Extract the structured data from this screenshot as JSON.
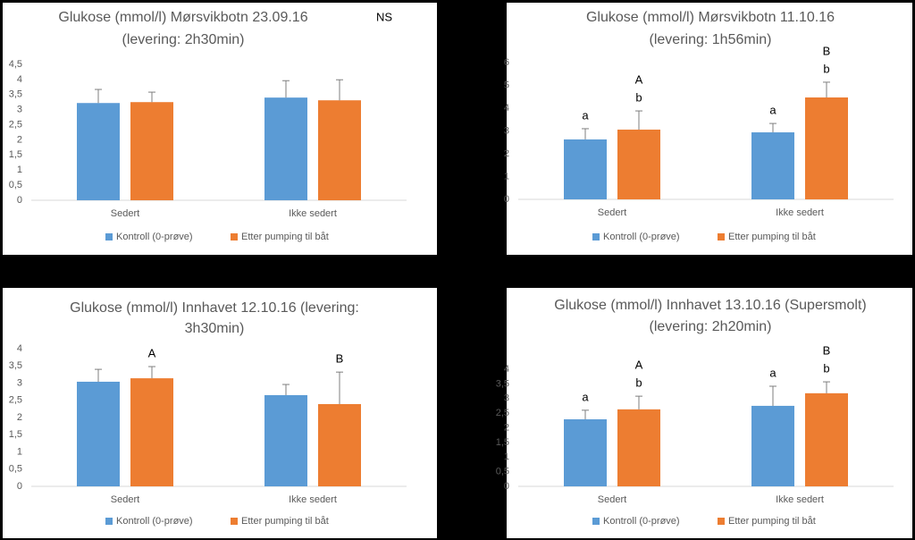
{
  "chart_data": [
    {
      "type": "bar",
      "title": [
        "Glukose (mmol/l) Mørsvikbotn 23.09.16",
        "(levering: 2h30min)"
      ],
      "annotation": "NS",
      "categories": [
        "Sedert",
        "Ikke sedert"
      ],
      "series": [
        {
          "name": "Kontroll (0-prøve)",
          "color": "#5b9bd5",
          "values": [
            3.22,
            3.4
          ],
          "errors": [
            0.45,
            0.56
          ]
        },
        {
          "name": "Etter pumping til båt",
          "color": "#ed7d31",
          "values": [
            3.25,
            3.31
          ],
          "errors": [
            0.33,
            0.68
          ]
        }
      ],
      "ylim": [
        0,
        4.5
      ],
      "yticks": [
        0,
        {
          "value": 0.5,
          "label": "0,5"
        },
        1,
        {
          "value": 1.5,
          "label": "1,5"
        },
        2,
        {
          "value": 2.5,
          "label": "2,5"
        },
        3,
        {
          "value": 3.5,
          "label": "3,5"
        },
        4,
        {
          "value": 4.5,
          "label": "4,5"
        }
      ]
    },
    {
      "type": "bar",
      "title": [
        "Glukose (mmol/l) Mørsvikbotn 11.10.16",
        "(levering: 1h56min)"
      ],
      "categories": [
        "Sedert",
        "Ikke sedert"
      ],
      "series": [
        {
          "name": "Kontroll (0-prøve)",
          "color": "#5b9bd5",
          "values": [
            2.63,
            2.94
          ],
          "errors": [
            0.47,
            0.39
          ],
          "annotations": [
            [
              "a"
            ],
            [
              "a"
            ]
          ]
        },
        {
          "name": "Etter pumping til båt",
          "color": "#ed7d31",
          "values": [
            3.06,
            4.47
          ],
          "errors": [
            0.82,
            0.67
          ],
          "annotations": [
            [
              "A",
              "b"
            ],
            [
              "B",
              "b"
            ]
          ]
        }
      ],
      "ylim": [
        0,
        6
      ],
      "yticks": [
        0,
        1,
        2,
        3,
        4,
        5,
        6
      ]
    },
    {
      "type": "bar",
      "title": [
        "Glukose (mmol/l) Innhavet 12.10.16 (levering:",
        "3h30min)"
      ],
      "categories": [
        "Sedert",
        "Ikke sedert"
      ],
      "series": [
        {
          "name": "Kontroll (0-prøve)",
          "color": "#5b9bd5",
          "values": [
            3.04,
            2.65
          ],
          "errors": [
            0.36,
            0.31
          ]
        },
        {
          "name": "Etter pumping til båt",
          "color": "#ed7d31",
          "values": [
            3.14,
            2.39
          ],
          "errors": [
            0.34,
            0.93
          ],
          "annotations": [
            [
              "A"
            ],
            [
              "B"
            ]
          ]
        }
      ],
      "ylim": [
        0,
        4
      ],
      "yticks": [
        0,
        {
          "value": 0.5,
          "label": "0,5"
        },
        1,
        {
          "value": 1.5,
          "label": "1,5"
        },
        2,
        {
          "value": 2.5,
          "label": "2,5"
        },
        3,
        {
          "value": 3.5,
          "label": "3,5"
        },
        4
      ]
    },
    {
      "type": "bar",
      "title": [
        "Glukose (mmol/l) Innhavet 13.10.16 (Supersmolt)",
        "(levering: 2h20min)"
      ],
      "categories": [
        "Sedert",
        "Ikke sedert"
      ],
      "series": [
        {
          "name": "Kontroll (0-prøve)",
          "color": "#5b9bd5",
          "values": [
            2.29,
            2.75
          ],
          "errors": [
            0.31,
            0.67
          ],
          "annotations": [
            [
              "a"
            ],
            [
              "a"
            ]
          ]
        },
        {
          "name": "Etter pumping til båt",
          "color": "#ed7d31",
          "values": [
            2.63,
            3.18
          ],
          "errors": [
            0.45,
            0.39
          ],
          "annotations": [
            [
              "A",
              "b"
            ],
            [
              "B",
              "b"
            ]
          ]
        }
      ],
      "ylim": [
        0,
        4
      ],
      "yticks": [
        0,
        {
          "value": 0.5,
          "label": "0,5"
        },
        1,
        {
          "value": 1.5,
          "label": "1,5"
        },
        2,
        {
          "value": 2.5,
          "label": "2,5"
        },
        3,
        {
          "value": 3.5,
          "label": "3,5"
        },
        4
      ]
    }
  ]
}
